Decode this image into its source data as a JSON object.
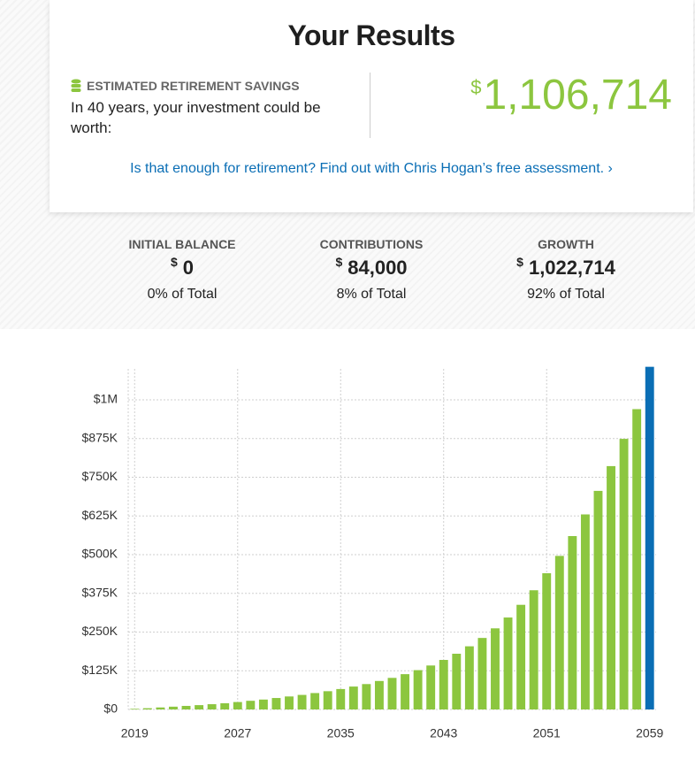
{
  "header": {
    "title": "Your Results"
  },
  "savings": {
    "label": "ESTIMATED RETIREMENT SAVINGS",
    "text": "In 40 years, your investment could be worth:",
    "currency": "$",
    "amount": "1,106,714"
  },
  "link": {
    "text": "Is that enough for retirement? Find out with Chris Hogan’s free assessment.",
    "arrow": "›"
  },
  "stats": [
    {
      "label": "INITIAL BALANCE",
      "currency": "$",
      "amount": "0",
      "share": "0% of Total"
    },
    {
      "label": "CONTRIBUTIONS",
      "currency": "$",
      "amount": "84,000",
      "share": "8% of Total"
    },
    {
      "label": "GROWTH",
      "currency": "$",
      "amount": "1,022,714",
      "share": "92% of Total"
    }
  ],
  "chart_data": {
    "type": "bar",
    "x": [
      2019,
      2020,
      2021,
      2022,
      2023,
      2024,
      2025,
      2026,
      2027,
      2028,
      2029,
      2030,
      2031,
      2032,
      2033,
      2034,
      2035,
      2036,
      2037,
      2038,
      2039,
      2040,
      2041,
      2042,
      2043,
      2044,
      2045,
      2046,
      2047,
      2048,
      2049,
      2050,
      2051,
      2052,
      2053,
      2054,
      2055,
      2056,
      2057,
      2058,
      2059
    ],
    "values": [
      2000,
      4000,
      6500,
      9000,
      11500,
      14000,
      17000,
      20000,
      24000,
      28000,
      32000,
      37000,
      42000,
      47000,
      53000,
      59000,
      66000,
      74000,
      82000,
      92000,
      102000,
      114000,
      127000,
      142000,
      160000,
      180000,
      204000,
      231000,
      262000,
      297000,
      338000,
      385000,
      440000,
      496000,
      560000,
      630000,
      706000,
      786000,
      874000,
      970000,
      1106714
    ],
    "colors": [
      "#8cc63f",
      "#8cc63f",
      "#8cc63f",
      "#8cc63f",
      "#8cc63f",
      "#8cc63f",
      "#8cc63f",
      "#8cc63f",
      "#8cc63f",
      "#8cc63f",
      "#8cc63f",
      "#8cc63f",
      "#8cc63f",
      "#8cc63f",
      "#8cc63f",
      "#8cc63f",
      "#8cc63f",
      "#8cc63f",
      "#8cc63f",
      "#8cc63f",
      "#8cc63f",
      "#8cc63f",
      "#8cc63f",
      "#8cc63f",
      "#8cc63f",
      "#8cc63f",
      "#8cc63f",
      "#8cc63f",
      "#8cc63f",
      "#8cc63f",
      "#8cc63f",
      "#8cc63f",
      "#8cc63f",
      "#8cc63f",
      "#8cc63f",
      "#8cc63f",
      "#8cc63f",
      "#8cc63f",
      "#8cc63f",
      "#8cc63f",
      "#0a6eb5"
    ],
    "xlim": [
      2018.5,
      2059.5
    ],
    "xticks": [
      2019,
      2027,
      2035,
      2043,
      2051,
      2059
    ],
    "ylim": [
      0,
      1100000
    ],
    "yticks": [
      {
        "value": 0,
        "label": "$0"
      },
      {
        "value": 125000,
        "label": "$125K"
      },
      {
        "value": 250000,
        "label": "$250K"
      },
      {
        "value": 375000,
        "label": "$375K"
      },
      {
        "value": 500000,
        "label": "$500K"
      },
      {
        "value": 625000,
        "label": "$625K"
      },
      {
        "value": 750000,
        "label": "$750K"
      },
      {
        "value": 875000,
        "label": "$875K"
      },
      {
        "value": 1000000,
        "label": "$1M"
      }
    ],
    "grid": true
  }
}
